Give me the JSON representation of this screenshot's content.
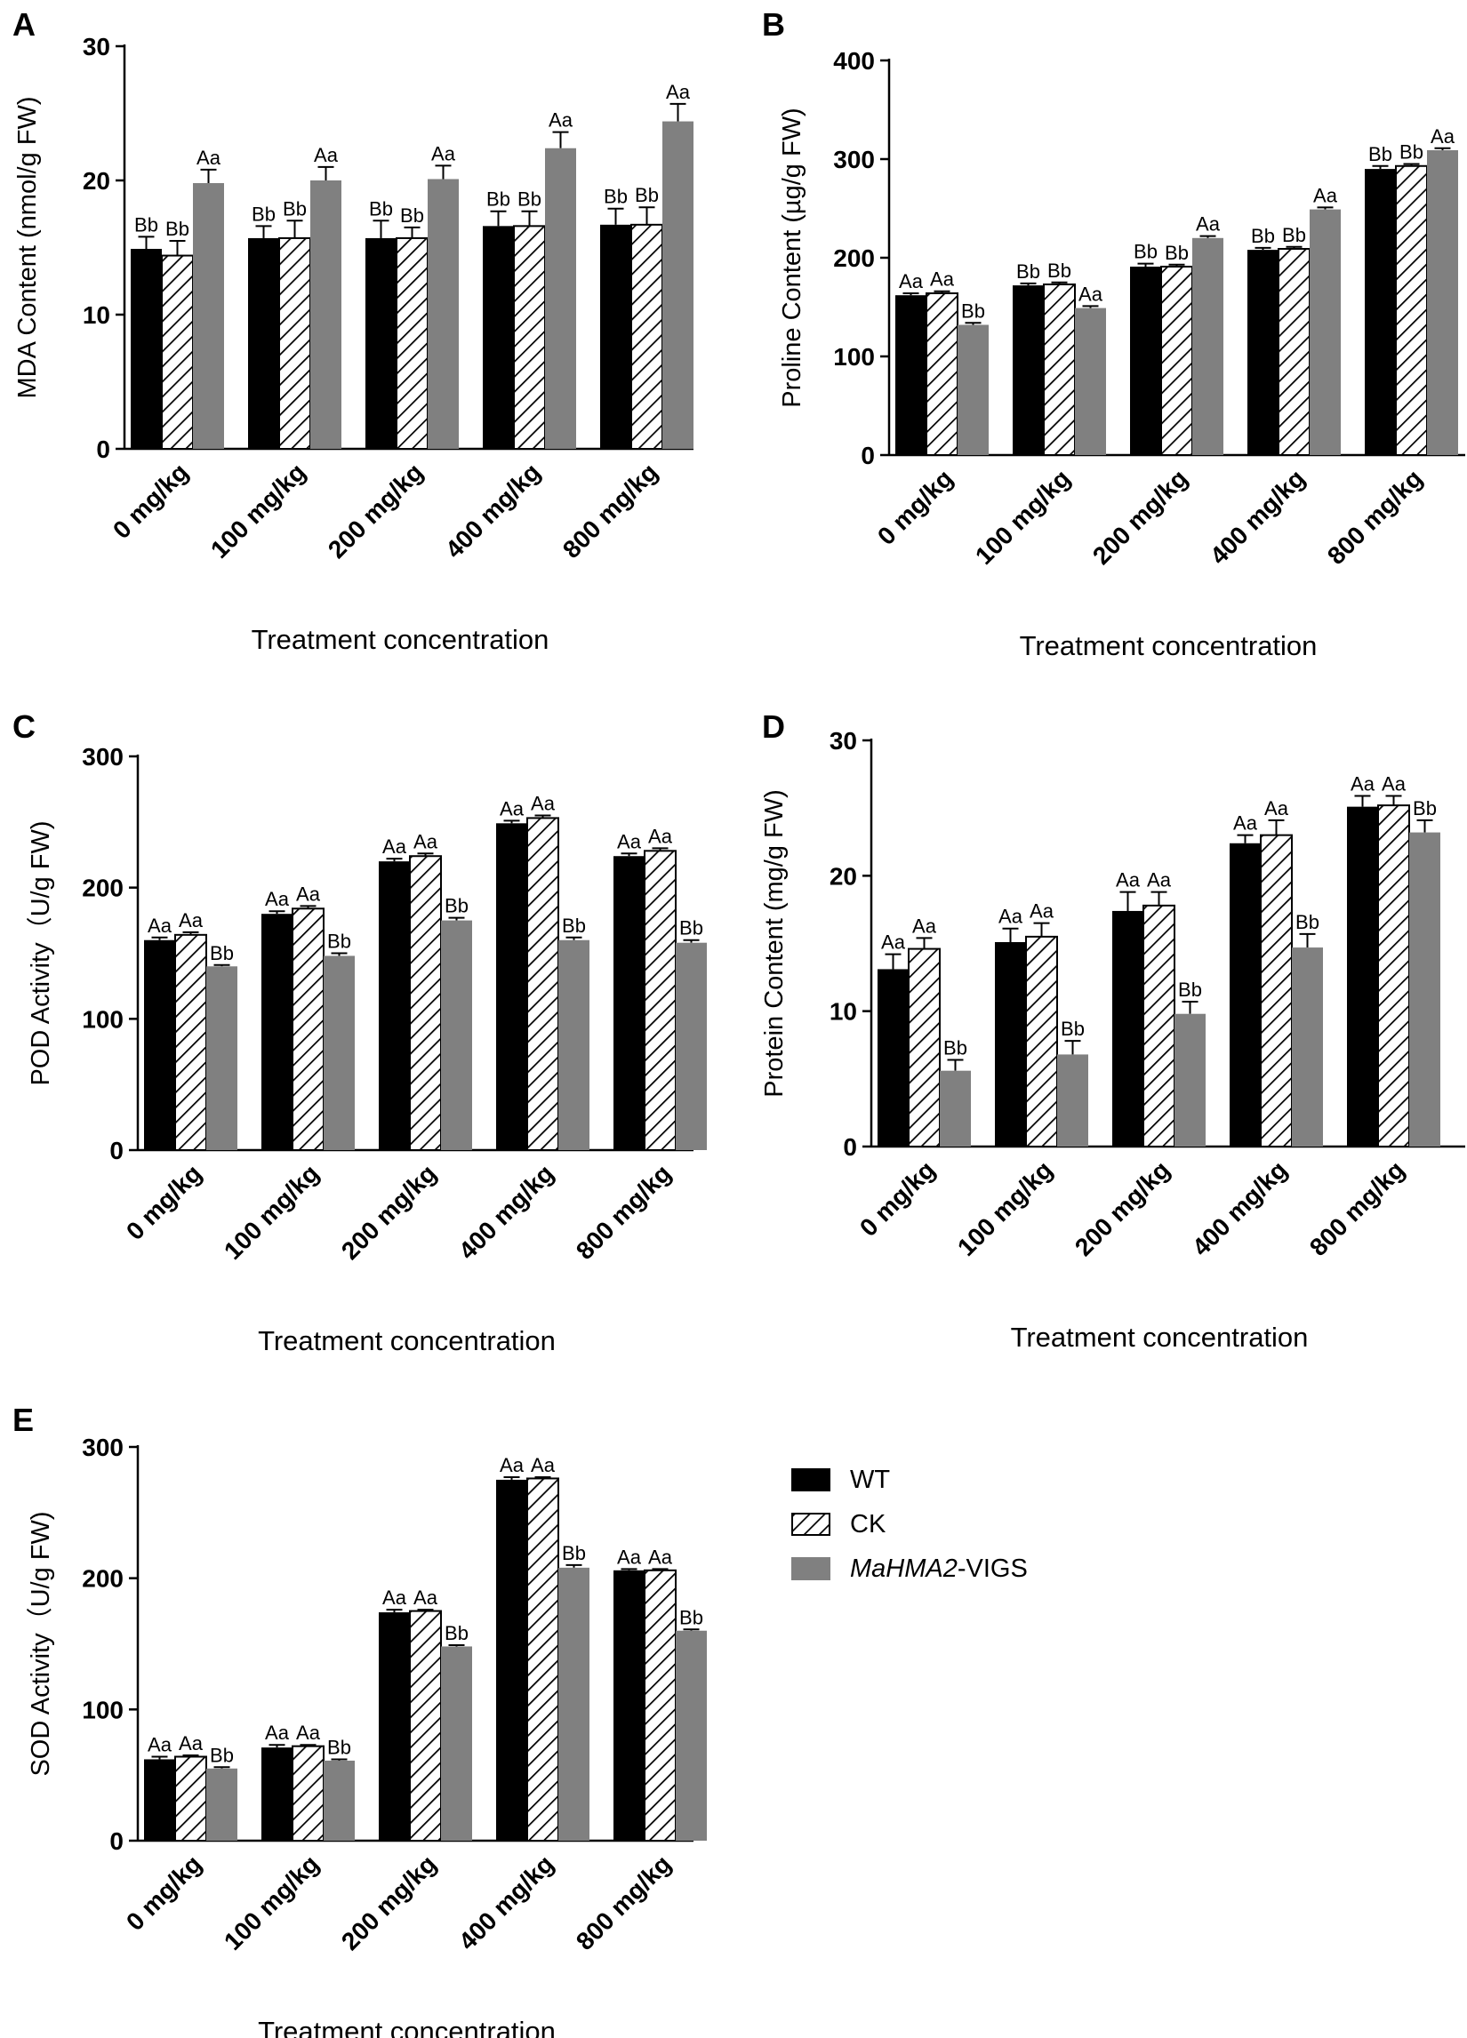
{
  "figure": {
    "series": [
      {
        "name": "WT",
        "color": "#000000",
        "fill": "solid"
      },
      {
        "name": "CK",
        "color": "#000000",
        "fill": "hatch"
      },
      {
        "name_italic": "MaHMA2",
        "name_suffix": "-VIGS",
        "color": "#808080",
        "fill": "solid"
      }
    ],
    "legend": {
      "wt": "WT",
      "ck": "CK",
      "vigs_italic": "MaHMA2",
      "vigs_suffix": "-VIGS"
    }
  },
  "chart_data": [
    {
      "panel": "A",
      "type": "bar",
      "ylabel": "MDA Content (nmol/g FW)",
      "xlabel": "Treatment concentration",
      "categories": [
        "0 mg/kg",
        "100 mg/kg",
        "200 mg/kg",
        "400 mg/kg",
        "800 mg/kg"
      ],
      "ylim": [
        0,
        30
      ],
      "yticks": [
        0,
        10,
        20,
        30
      ],
      "series": [
        {
          "name": "WT",
          "values": [
            14.9,
            15.7,
            15.7,
            16.6,
            16.7
          ],
          "errors": [
            0.9,
            0.9,
            1.3,
            1.1,
            1.2
          ],
          "labels": [
            "Bb",
            "Bb",
            "Bb",
            "Bb",
            "Bb"
          ]
        },
        {
          "name": "CK",
          "values": [
            14.4,
            15.7,
            15.7,
            16.6,
            16.7
          ],
          "errors": [
            1.1,
            1.3,
            0.8,
            1.1,
            1.3
          ],
          "labels": [
            "Bb",
            "Bb",
            "Bb",
            "Bb",
            "Bb"
          ]
        },
        {
          "name": "MaHMA2-VIGS",
          "values": [
            19.8,
            20.0,
            20.1,
            22.4,
            24.4
          ],
          "errors": [
            1.0,
            1.0,
            1.0,
            1.2,
            1.3
          ],
          "labels": [
            "Aa",
            "Aa",
            "Aa",
            "Aa",
            "Aa"
          ]
        }
      ]
    },
    {
      "panel": "B",
      "type": "bar",
      "ylabel": "Proline Content (µg/g FW)",
      "xlabel": "Treatment concentration",
      "categories": [
        "0 mg/kg",
        "100 mg/kg",
        "200 mg/kg",
        "400 mg/kg",
        "800 mg/kg"
      ],
      "ylim": [
        0,
        400
      ],
      "yticks": [
        0,
        100,
        200,
        300,
        400
      ],
      "series": [
        {
          "name": "WT",
          "values": [
            162,
            172,
            191,
            208,
            290
          ],
          "errors": [
            2,
            2,
            3,
            2,
            3
          ],
          "labels": [
            "Aa",
            "Bb",
            "Bb",
            "Bb",
            "Bb"
          ]
        },
        {
          "name": "CK",
          "values": [
            164,
            173,
            191,
            209,
            293
          ],
          "errors": [
            2,
            2,
            2,
            2,
            2
          ],
          "labels": [
            "Aa",
            "Bb",
            "Bb",
            "Bb",
            "Bb"
          ]
        },
        {
          "name": "MaHMA2-VIGS",
          "values": [
            132,
            149,
            220,
            249,
            309
          ],
          "errors": [
            2,
            2,
            2,
            2,
            2
          ],
          "labels": [
            "Bb",
            "Aa",
            "Aa",
            "Aa",
            "Aa"
          ]
        }
      ]
    },
    {
      "panel": "C",
      "type": "bar",
      "ylabel": "POD Activity（U/g FW)",
      "xlabel": "Treatment concentration",
      "categories": [
        "0 mg/kg",
        "100 mg/kg",
        "200 mg/kg",
        "400 mg/kg",
        "800 mg/kg"
      ],
      "ylim": [
        0,
        300
      ],
      "yticks": [
        0,
        100,
        200,
        300
      ],
      "series": [
        {
          "name": "WT",
          "values": [
            160,
            180,
            220,
            249,
            224
          ],
          "errors": [
            2,
            2,
            2,
            2,
            2
          ],
          "labels": [
            "Aa",
            "Aa",
            "Aa",
            "Aa",
            "Aa"
          ]
        },
        {
          "name": "CK",
          "values": [
            164,
            184,
            224,
            253,
            228
          ],
          "errors": [
            2,
            2,
            2,
            2,
            2
          ],
          "labels": [
            "Aa",
            "Aa",
            "Aa",
            "Aa",
            "Aa"
          ]
        },
        {
          "name": "MaHMA2-VIGS",
          "values": [
            140,
            148,
            175,
            160,
            158
          ],
          "errors": [
            1,
            2,
            2,
            2,
            2
          ],
          "labels": [
            "Bb",
            "Bb",
            "Bb",
            "Bb",
            "Bb"
          ]
        }
      ]
    },
    {
      "panel": "D",
      "type": "bar",
      "ylabel": "Protein Content (mg/g FW)",
      "xlabel": "Treatment concentration",
      "categories": [
        "0 mg/kg",
        "100 mg/kg",
        "200 mg/kg",
        "400 mg/kg",
        "800 mg/kg"
      ],
      "ylim": [
        0,
        30
      ],
      "yticks": [
        0,
        10,
        20,
        30
      ],
      "series": [
        {
          "name": "WT",
          "values": [
            13.1,
            15.1,
            17.4,
            22.4,
            25.1
          ],
          "errors": [
            1.1,
            1.0,
            1.4,
            0.6,
            0.8
          ],
          "labels": [
            "Aa",
            "Aa",
            "Aa",
            "Aa",
            "Aa"
          ]
        },
        {
          "name": "CK",
          "values": [
            14.6,
            15.5,
            17.8,
            23.0,
            25.2
          ],
          "errors": [
            0.8,
            1.0,
            1.0,
            1.1,
            0.7
          ],
          "labels": [
            "Aa",
            "Aa",
            "Aa",
            "Aa",
            "Aa"
          ]
        },
        {
          "name": "MaHMA2-VIGS",
          "values": [
            5.6,
            6.8,
            9.8,
            14.7,
            23.2
          ],
          "errors": [
            0.8,
            1.0,
            0.9,
            1.0,
            0.9
          ],
          "labels": [
            "Bb",
            "Bb",
            "Bb",
            "Bb",
            "Bb"
          ]
        }
      ]
    },
    {
      "panel": "E",
      "type": "bar",
      "ylabel": "SOD Activity（U/g FW)",
      "xlabel": "Treatment concentration",
      "categories": [
        "0  mg/kg",
        "100 mg/kg",
        "200 mg/kg",
        "400 mg/kg",
        "800 mg/kg"
      ],
      "ylim": [
        0,
        300
      ],
      "yticks": [
        0,
        100,
        200,
        300
      ],
      "series": [
        {
          "name": "WT",
          "values": [
            62,
            71,
            174,
            275,
            206
          ],
          "errors": [
            2,
            2,
            2,
            2,
            1
          ],
          "labels": [
            "Aa",
            "Aa",
            "Aa",
            "Aa",
            "Aa"
          ]
        },
        {
          "name": "CK",
          "values": [
            64,
            72,
            175,
            276,
            206
          ],
          "errors": [
            1,
            1,
            1,
            1,
            1
          ],
          "labels": [
            "Aa",
            "Aa",
            "Aa",
            "Aa",
            "Aa"
          ]
        },
        {
          "name": "MaHMA2-VIGS",
          "values": [
            55,
            61,
            148,
            208,
            160
          ],
          "errors": [
            1,
            1,
            1,
            2,
            1
          ],
          "labels": [
            "Bb",
            "Bb",
            "Bb",
            "Bb",
            "Bb"
          ]
        }
      ]
    }
  ]
}
